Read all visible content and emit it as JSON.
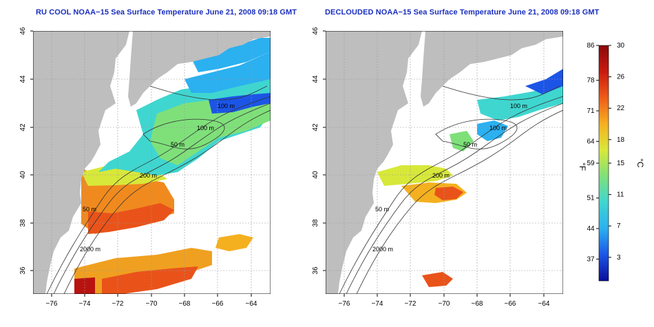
{
  "maps": [
    {
      "id": "left",
      "title": "RU COOL NOAA−15 Sea Surface Temperature June 21, 2008 09:18 GMT",
      "contour_labels": [
        "100 m",
        "100 m",
        "50 m",
        "200 m",
        "50 m",
        "2000 m"
      ]
    },
    {
      "id": "right",
      "title": "DECLOUDED NOAA−15 Sea Surface Temperature June 21, 2008 09:18 GMT",
      "contour_labels": [
        "100 m",
        "100 m",
        "50 m",
        "200 m",
        "50 m",
        "2000 m"
      ]
    }
  ],
  "axes": {
    "lon_ticks": [
      "−76",
      "−74",
      "−72",
      "−70",
      "−68",
      "−66",
      "−64"
    ],
    "lat_ticks": [
      "46",
      "44",
      "42",
      "40",
      "38",
      "36"
    ],
    "lon_range": [
      -77.2,
      -63.0
    ],
    "lat_range": [
      35.0,
      46.0
    ]
  },
  "colorbar": {
    "fahrenheit_ticks": [
      "86",
      "78",
      "71",
      "64",
      "59",
      "51",
      "44",
      "37"
    ],
    "celsius_ticks": [
      "30",
      "26",
      "22",
      "18",
      "15",
      "11",
      "7",
      "3"
    ],
    "fahrenheit_unit": "°F",
    "celsius_unit": "°C",
    "range_c": [
      0,
      30
    ],
    "colors": [
      "#0a0f9a",
      "#1c55e6",
      "#2bb0f0",
      "#3fd6d0",
      "#7fe07a",
      "#d8e83a",
      "#f5b020",
      "#ee5c18",
      "#c81a10",
      "#8a0a0a"
    ]
  },
  "colors": {
    "land": "#bebebe",
    "title": "#1a2fbf",
    "grid": "#9a9a9a",
    "contour": "#333333"
  }
}
